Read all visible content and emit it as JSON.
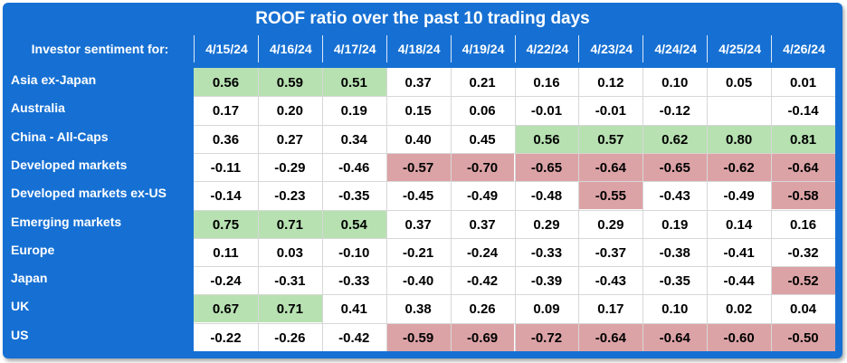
{
  "chart_data": {
    "type": "table",
    "title": "ROOF ratio over the past 10 trading days",
    "header_label": "Investor sentiment for:",
    "columns": [
      "4/15/24",
      "4/16/24",
      "4/17/24",
      "4/18/24",
      "4/19/24",
      "4/22/24",
      "4/23/24",
      "4/24/24",
      "4/25/24",
      "4/26/24"
    ],
    "rows": [
      {
        "label": "Asia ex-Japan",
        "values": [
          "0.56",
          "0.59",
          "0.51",
          "0.37",
          "0.21",
          "0.16",
          "0.12",
          "0.10",
          "0.05",
          "0.01"
        ],
        "highlight": [
          "pos",
          "pos",
          "pos",
          "",
          "",
          "",
          "",
          "",
          "",
          ""
        ]
      },
      {
        "label": "Australia",
        "values": [
          "0.17",
          "0.20",
          "0.19",
          "0.15",
          "0.06",
          "-0.01",
          "-0.01",
          "-0.12",
          "",
          "-0.14"
        ],
        "highlight": [
          "",
          "",
          "",
          "",
          "",
          "",
          "",
          "",
          "",
          ""
        ]
      },
      {
        "label": "China - All-Caps",
        "values": [
          "0.36",
          "0.27",
          "0.34",
          "0.40",
          "0.45",
          "0.56",
          "0.57",
          "0.62",
          "0.80",
          "0.81"
        ],
        "highlight": [
          "",
          "",
          "",
          "",
          "",
          "pos",
          "pos",
          "pos",
          "pos",
          "pos"
        ]
      },
      {
        "label": "Developed markets",
        "values": [
          "-0.11",
          "-0.29",
          "-0.46",
          "-0.57",
          "-0.70",
          "-0.65",
          "-0.64",
          "-0.65",
          "-0.62",
          "-0.64"
        ],
        "highlight": [
          "",
          "",
          "",
          "neg",
          "neg",
          "neg",
          "neg",
          "neg",
          "neg",
          "neg"
        ]
      },
      {
        "label": "Developed markets ex-US",
        "values": [
          "-0.14",
          "-0.23",
          "-0.35",
          "-0.45",
          "-0.49",
          "-0.48",
          "-0.55",
          "-0.43",
          "-0.49",
          "-0.58"
        ],
        "highlight": [
          "",
          "",
          "",
          "",
          "",
          "",
          "neg",
          "",
          "",
          "neg"
        ]
      },
      {
        "label": "Emerging markets",
        "values": [
          "0.75",
          "0.71",
          "0.54",
          "0.37",
          "0.37",
          "0.29",
          "0.29",
          "0.19",
          "0.14",
          "0.16"
        ],
        "highlight": [
          "pos",
          "pos",
          "pos",
          "",
          "",
          "",
          "",
          "",
          "",
          ""
        ]
      },
      {
        "label": "Europe",
        "values": [
          "0.11",
          "0.03",
          "-0.10",
          "-0.21",
          "-0.24",
          "-0.33",
          "-0.37",
          "-0.38",
          "-0.41",
          "-0.32"
        ],
        "highlight": [
          "",
          "",
          "",
          "",
          "",
          "",
          "",
          "",
          "",
          ""
        ]
      },
      {
        "label": "Japan",
        "values": [
          "-0.24",
          "-0.31",
          "-0.33",
          "-0.40",
          "-0.42",
          "-0.39",
          "-0.43",
          "-0.35",
          "-0.44",
          "-0.52"
        ],
        "highlight": [
          "",
          "",
          "",
          "",
          "",
          "",
          "",
          "",
          "",
          "neg"
        ]
      },
      {
        "label": "UK",
        "values": [
          "0.67",
          "0.71",
          "0.41",
          "0.38",
          "0.26",
          "0.09",
          "0.17",
          "0.10",
          "0.02",
          "0.04"
        ],
        "highlight": [
          "pos",
          "pos",
          "",
          "",
          "",
          "",
          "",
          "",
          "",
          ""
        ]
      },
      {
        "label": "US",
        "values": [
          "-0.22",
          "-0.26",
          "-0.42",
          "-0.59",
          "-0.69",
          "-0.72",
          "-0.64",
          "-0.64",
          "-0.60",
          "-0.50"
        ],
        "highlight": [
          "",
          "",
          "",
          "neg",
          "neg",
          "neg",
          "neg",
          "neg",
          "neg",
          "neg"
        ]
      }
    ],
    "colors": {
      "frame": "#1670d3",
      "positive_highlight": "#b7e1b1",
      "negative_highlight": "#dca3a6"
    }
  }
}
